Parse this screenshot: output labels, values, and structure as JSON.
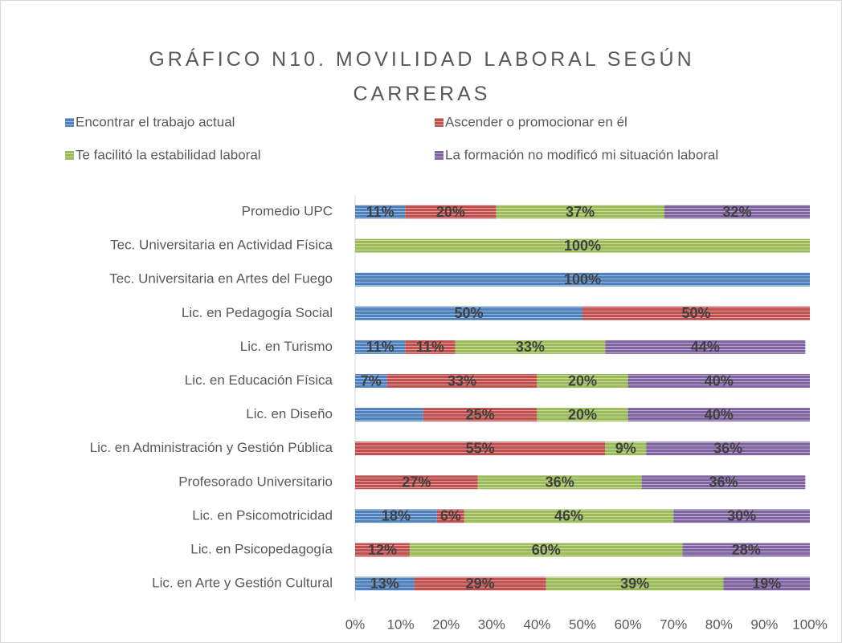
{
  "chart_data": {
    "type": "stacked-barh",
    "title": "GRÁFICO N10. MOVILIDAD LABORAL SEGÚN CARRERAS",
    "categories": [
      "Promedio UPC",
      "Tec. Universitaria en Actividad Física",
      "Tec. Universitaria en Artes del Fuego",
      "Lic. en Pedagogía Social",
      "Lic. en Turismo",
      "Lic. en Educación Física",
      "Lic. en Diseño",
      "Lic. en Administración y Gestión Pública",
      "Profesorado Universitario",
      "Lic. en Psicomotricidad",
      "Lic. en Psicopedagogía",
      "Lic. en Arte y Gestión Cultural"
    ],
    "series": [
      {
        "name": "Encontrar el trabajo actual",
        "color": "#4f81bd",
        "values": [
          11,
          null,
          100,
          50,
          11,
          7,
          15,
          null,
          null,
          18,
          null,
          13
        ],
        "value_labels": [
          "11%",
          null,
          "100%",
          "50%",
          "11%",
          "7%",
          null,
          null,
          null,
          "18%",
          null,
          "13%"
        ]
      },
      {
        "name": "Ascender o promocionar en él",
        "color": "#c0504d",
        "values": [
          20,
          null,
          null,
          50,
          11,
          33,
          25,
          55,
          27,
          6,
          12,
          29
        ],
        "value_labels": [
          "20%",
          null,
          null,
          "50%",
          "11%",
          "33%",
          "25%",
          "55%",
          "27%",
          "6%",
          "12%",
          "29%"
        ]
      },
      {
        "name": "Te facilitó la estabilidad laboral",
        "color": "#9bbb59",
        "values": [
          37,
          100,
          null,
          null,
          33,
          20,
          20,
          9,
          36,
          46,
          60,
          39
        ],
        "value_labels": [
          "37%",
          "100%",
          null,
          null,
          "33%",
          "20%",
          "20%",
          "9%",
          "36%",
          "46%",
          "60%",
          "39%"
        ]
      },
      {
        "name": "La formación no modificó mi situación laboral",
        "color": "#8064a2",
        "values": [
          32,
          null,
          null,
          null,
          44,
          40,
          40,
          36,
          36,
          30,
          28,
          19
        ],
        "value_labels": [
          "32%",
          null,
          null,
          null,
          "44%",
          "40%",
          "40%",
          "36%",
          "36%",
          "30%",
          "28%",
          "19%"
        ]
      }
    ],
    "xlim": [
      0,
      100
    ],
    "xticks": [
      {
        "value": 0,
        "label": "0%"
      },
      {
        "value": 10,
        "label": "10%"
      },
      {
        "value": 20,
        "label": "20%"
      },
      {
        "value": 30,
        "label": "30%"
      },
      {
        "value": 40,
        "label": "40%"
      },
      {
        "value": 50,
        "label": "50%"
      },
      {
        "value": 60,
        "label": "60%"
      },
      {
        "value": 70,
        "label": "70%"
      },
      {
        "value": 80,
        "label": "80%"
      },
      {
        "value": 90,
        "label": "90%"
      },
      {
        "value": 100,
        "label": "100%"
      }
    ],
    "legend": "top"
  }
}
